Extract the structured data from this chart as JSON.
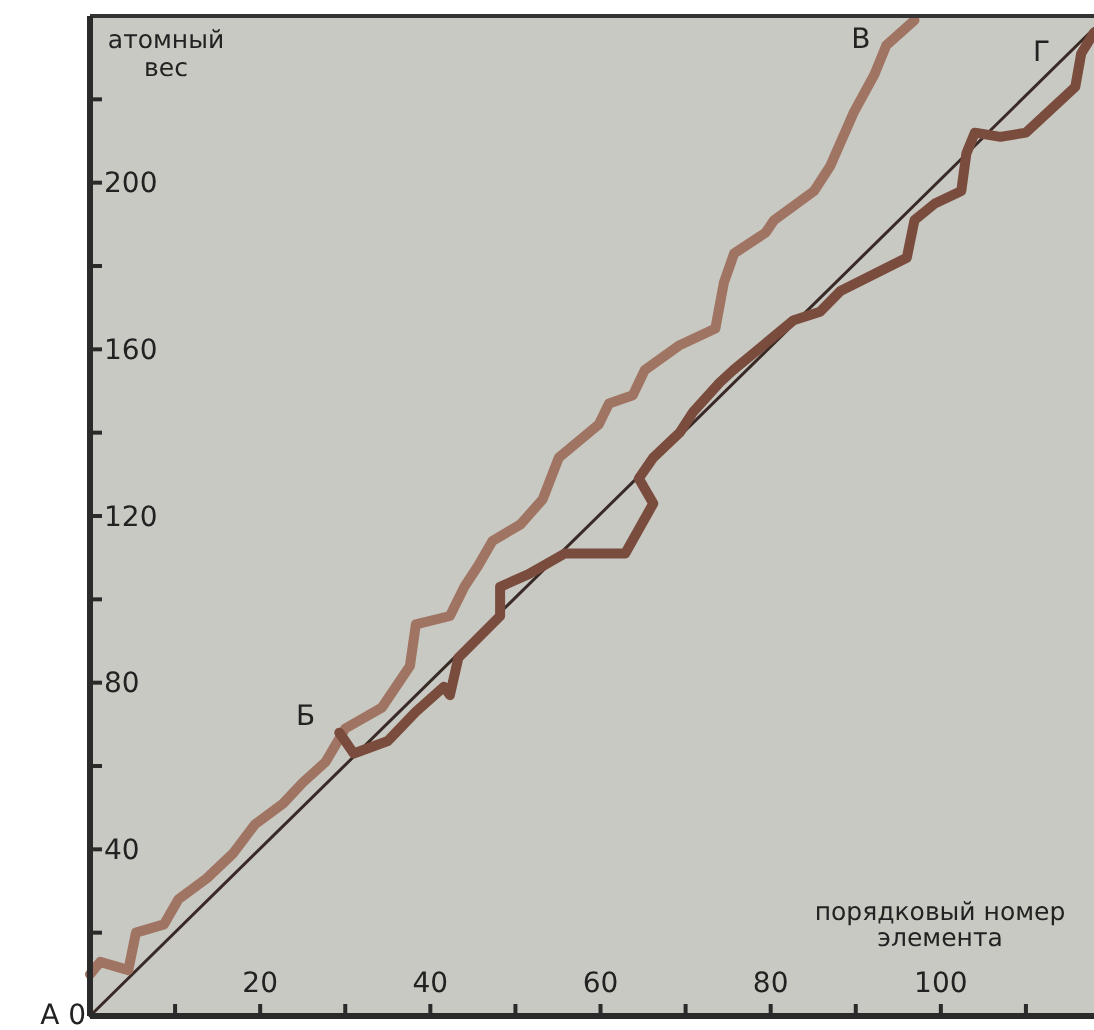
{
  "chart_data": {
    "type": "line",
    "xlabel": "порядковый номер\nэлемента",
    "ylabel": "атомный\nвес",
    "xlim": [
      0,
      118
    ],
    "ylim": [
      0,
      240
    ],
    "xticks": [
      {
        "value": 10,
        "label": null
      },
      20,
      {
        "value": 30,
        "label": null
      },
      40,
      {
        "value": 50,
        "label": null
      },
      60,
      {
        "value": 70,
        "label": null
      },
      80,
      {
        "value": 90,
        "label": null
      },
      100,
      {
        "value": 110,
        "label": null
      }
    ],
    "yticks": [
      {
        "value": 20,
        "label": null
      },
      40,
      {
        "value": 60,
        "label": null
      },
      80,
      {
        "value": 100,
        "label": null
      },
      120,
      {
        "value": 140,
        "label": null
      },
      160,
      {
        "value": 180,
        "label": null
      },
      200,
      {
        "value": 220,
        "label": null
      }
    ],
    "grid": false,
    "marker": "none",
    "series": [
      {
        "color": "#3a2a26",
        "x": [
          0,
          118
        ],
        "values": [
          0,
          237
        ]
      },
      {
        "color": "#a07462",
        "x": [
          0,
          1.2,
          4.5,
          5.4,
          8.7,
          10.4,
          13.7,
          16.8,
          19.4,
          22.7,
          25,
          27.7,
          30,
          34.3,
          37.6,
          38.3,
          42.3,
          44,
          45.6,
          47.3,
          50.6,
          53.2,
          55.1,
          59.8,
          61,
          63.8,
          65.2,
          69.3,
          73.5,
          74.5,
          75.7,
          79.4,
          80.4,
          85.1,
          87,
          89.8,
          92.2,
          93.6,
          96.9
        ],
        "values": [
          10,
          13,
          11,
          20,
          22,
          28,
          33,
          39,
          46,
          51,
          56,
          61,
          69,
          74,
          84,
          94,
          96,
          103,
          108,
          114,
          118,
          124,
          134,
          142,
          147,
          149,
          155,
          161,
          165,
          176,
          183,
          188,
          191,
          198,
          204,
          217,
          226,
          233,
          239
        ]
      },
      {
        "color": "#7a4c3e",
        "x": [
          29.3,
          31,
          35,
          38.3,
          41.6,
          42.3,
          43.3,
          48.2,
          48.2,
          51.5,
          55.8,
          62.9,
          66.2,
          64.5,
          66.2,
          69.3,
          70.9,
          74,
          75.6,
          82.7,
          85.8,
          88.2,
          96,
          96.9,
          99.3,
          102.4,
          103,
          104,
          107,
          110,
          115.8,
          116.5,
          118
        ],
        "values": [
          68,
          63,
          66,
          73,
          79,
          77,
          86,
          96,
          103,
          106,
          111,
          111,
          123,
          129,
          134,
          140,
          145,
          152,
          155,
          167,
          169,
          174,
          182,
          191,
          195,
          198,
          207,
          212,
          211,
          212,
          223,
          231,
          236
        ]
      }
    ],
    "annotations": [
      {
        "text": "А 0",
        "x": 0,
        "y": 0
      },
      {
        "text": "Б",
        "x": 29.3,
        "y": 68
      },
      {
        "text": "В",
        "x": 96.9,
        "y": 239
      },
      {
        "text": "Г",
        "x": 118,
        "y": 236
      }
    ]
  }
}
